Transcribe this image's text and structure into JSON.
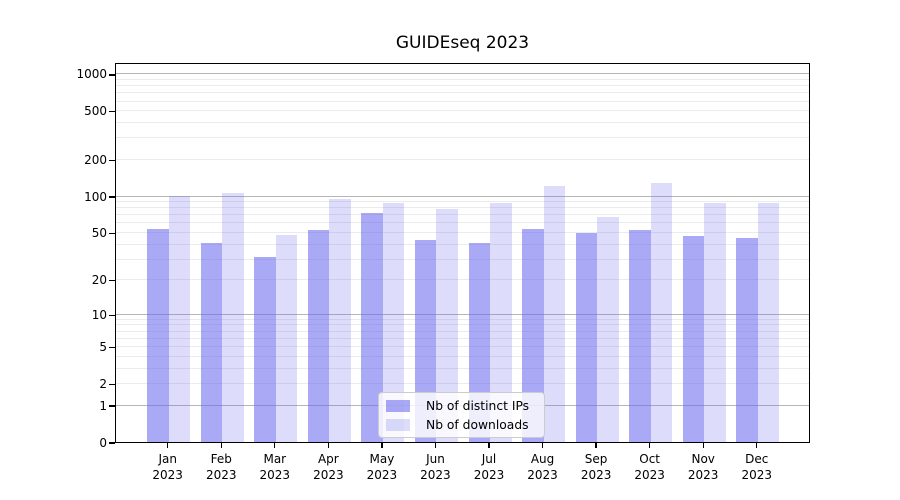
{
  "title": "GUIDEseq 2023",
  "chart_data": {
    "type": "bar",
    "title": "GUIDEseq 2023",
    "categories": [
      "Jan",
      "Feb",
      "Mar",
      "Apr",
      "May",
      "Jun",
      "Jul",
      "Aug",
      "Sep",
      "Oct",
      "Nov",
      "Dec"
    ],
    "category_year": "2023",
    "series": [
      {
        "name": "Nb of distinct IPs",
        "color": "rgba(102,102,238,0.56)",
        "values": [
          53,
          41,
          31,
          52,
          72,
          43,
          41,
          53,
          50,
          52,
          47,
          45
        ]
      },
      {
        "name": "Nb of downloads",
        "color": "rgba(102,102,238,0.22)",
        "values": [
          100,
          106,
          48,
          95,
          88,
          78,
          88,
          120,
          67,
          127,
          87,
          87
        ]
      }
    ],
    "xlabel": "",
    "ylabel": "",
    "yscale": "log1p",
    "ylim": [
      0,
      1250
    ],
    "y_ticks": [
      0,
      1,
      2,
      5,
      10,
      20,
      50,
      100,
      200,
      500,
      1000
    ],
    "y_major_gridlines": [
      1,
      10,
      100,
      1000
    ],
    "y_minor_gridlines": [
      3,
      4,
      6,
      7,
      8,
      9,
      30,
      40,
      60,
      70,
      80,
      90,
      300,
      400,
      600,
      700,
      800,
      900
    ],
    "grid": true,
    "legend_position": "lower center"
  },
  "colors": {
    "bar_base": "#6666ee",
    "major_grid": "#b6b6b6",
    "minor_grid": "#ebebeb",
    "axis": "#000000",
    "legend_border": "#cccccc",
    "legend_background": "rgba(255,255,255,0.8)"
  }
}
